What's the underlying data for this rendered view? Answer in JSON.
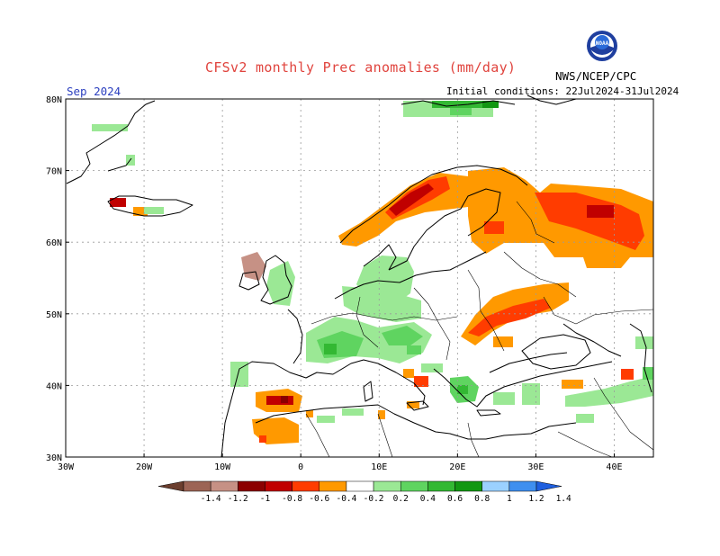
{
  "header": {
    "title": "CFSv2 monthly Prec anomalies (mm/day)",
    "month": "Sep 2024",
    "initial_conditions": "Initial conditions: 22Jul2024-31Jul2024",
    "agency": "NWS/NCEP/CPC",
    "logo_text": "NOAA"
  },
  "map": {
    "lon_range": [
      -30,
      45
    ],
    "lat_range": [
      30,
      80
    ],
    "lat_labels": [
      "80N",
      "70N",
      "60N",
      "50N",
      "40N",
      "30N"
    ],
    "lon_labels": [
      "30W",
      "20W",
      "10W",
      "0",
      "10E",
      "20E",
      "30E",
      "40E"
    ]
  },
  "legend": {
    "labels": [
      "-1.4",
      "-1.2",
      "-1",
      "-0.8",
      "-0.6",
      "-0.4",
      "-0.2",
      "0.2",
      "0.4",
      "0.6",
      "0.8",
      "1",
      "1.2",
      "1.4"
    ],
    "colors": [
      "#6b3e2e",
      "#9c6455",
      "#c69185",
      "#8b0000",
      "#c00000",
      "#ff3c00",
      "#ff9900",
      "#ffffff",
      "#9be895",
      "#5fd460",
      "#33b833",
      "#129712",
      "#9bd1ff",
      "#3f8fef",
      "#1f5fdf"
    ]
  }
}
